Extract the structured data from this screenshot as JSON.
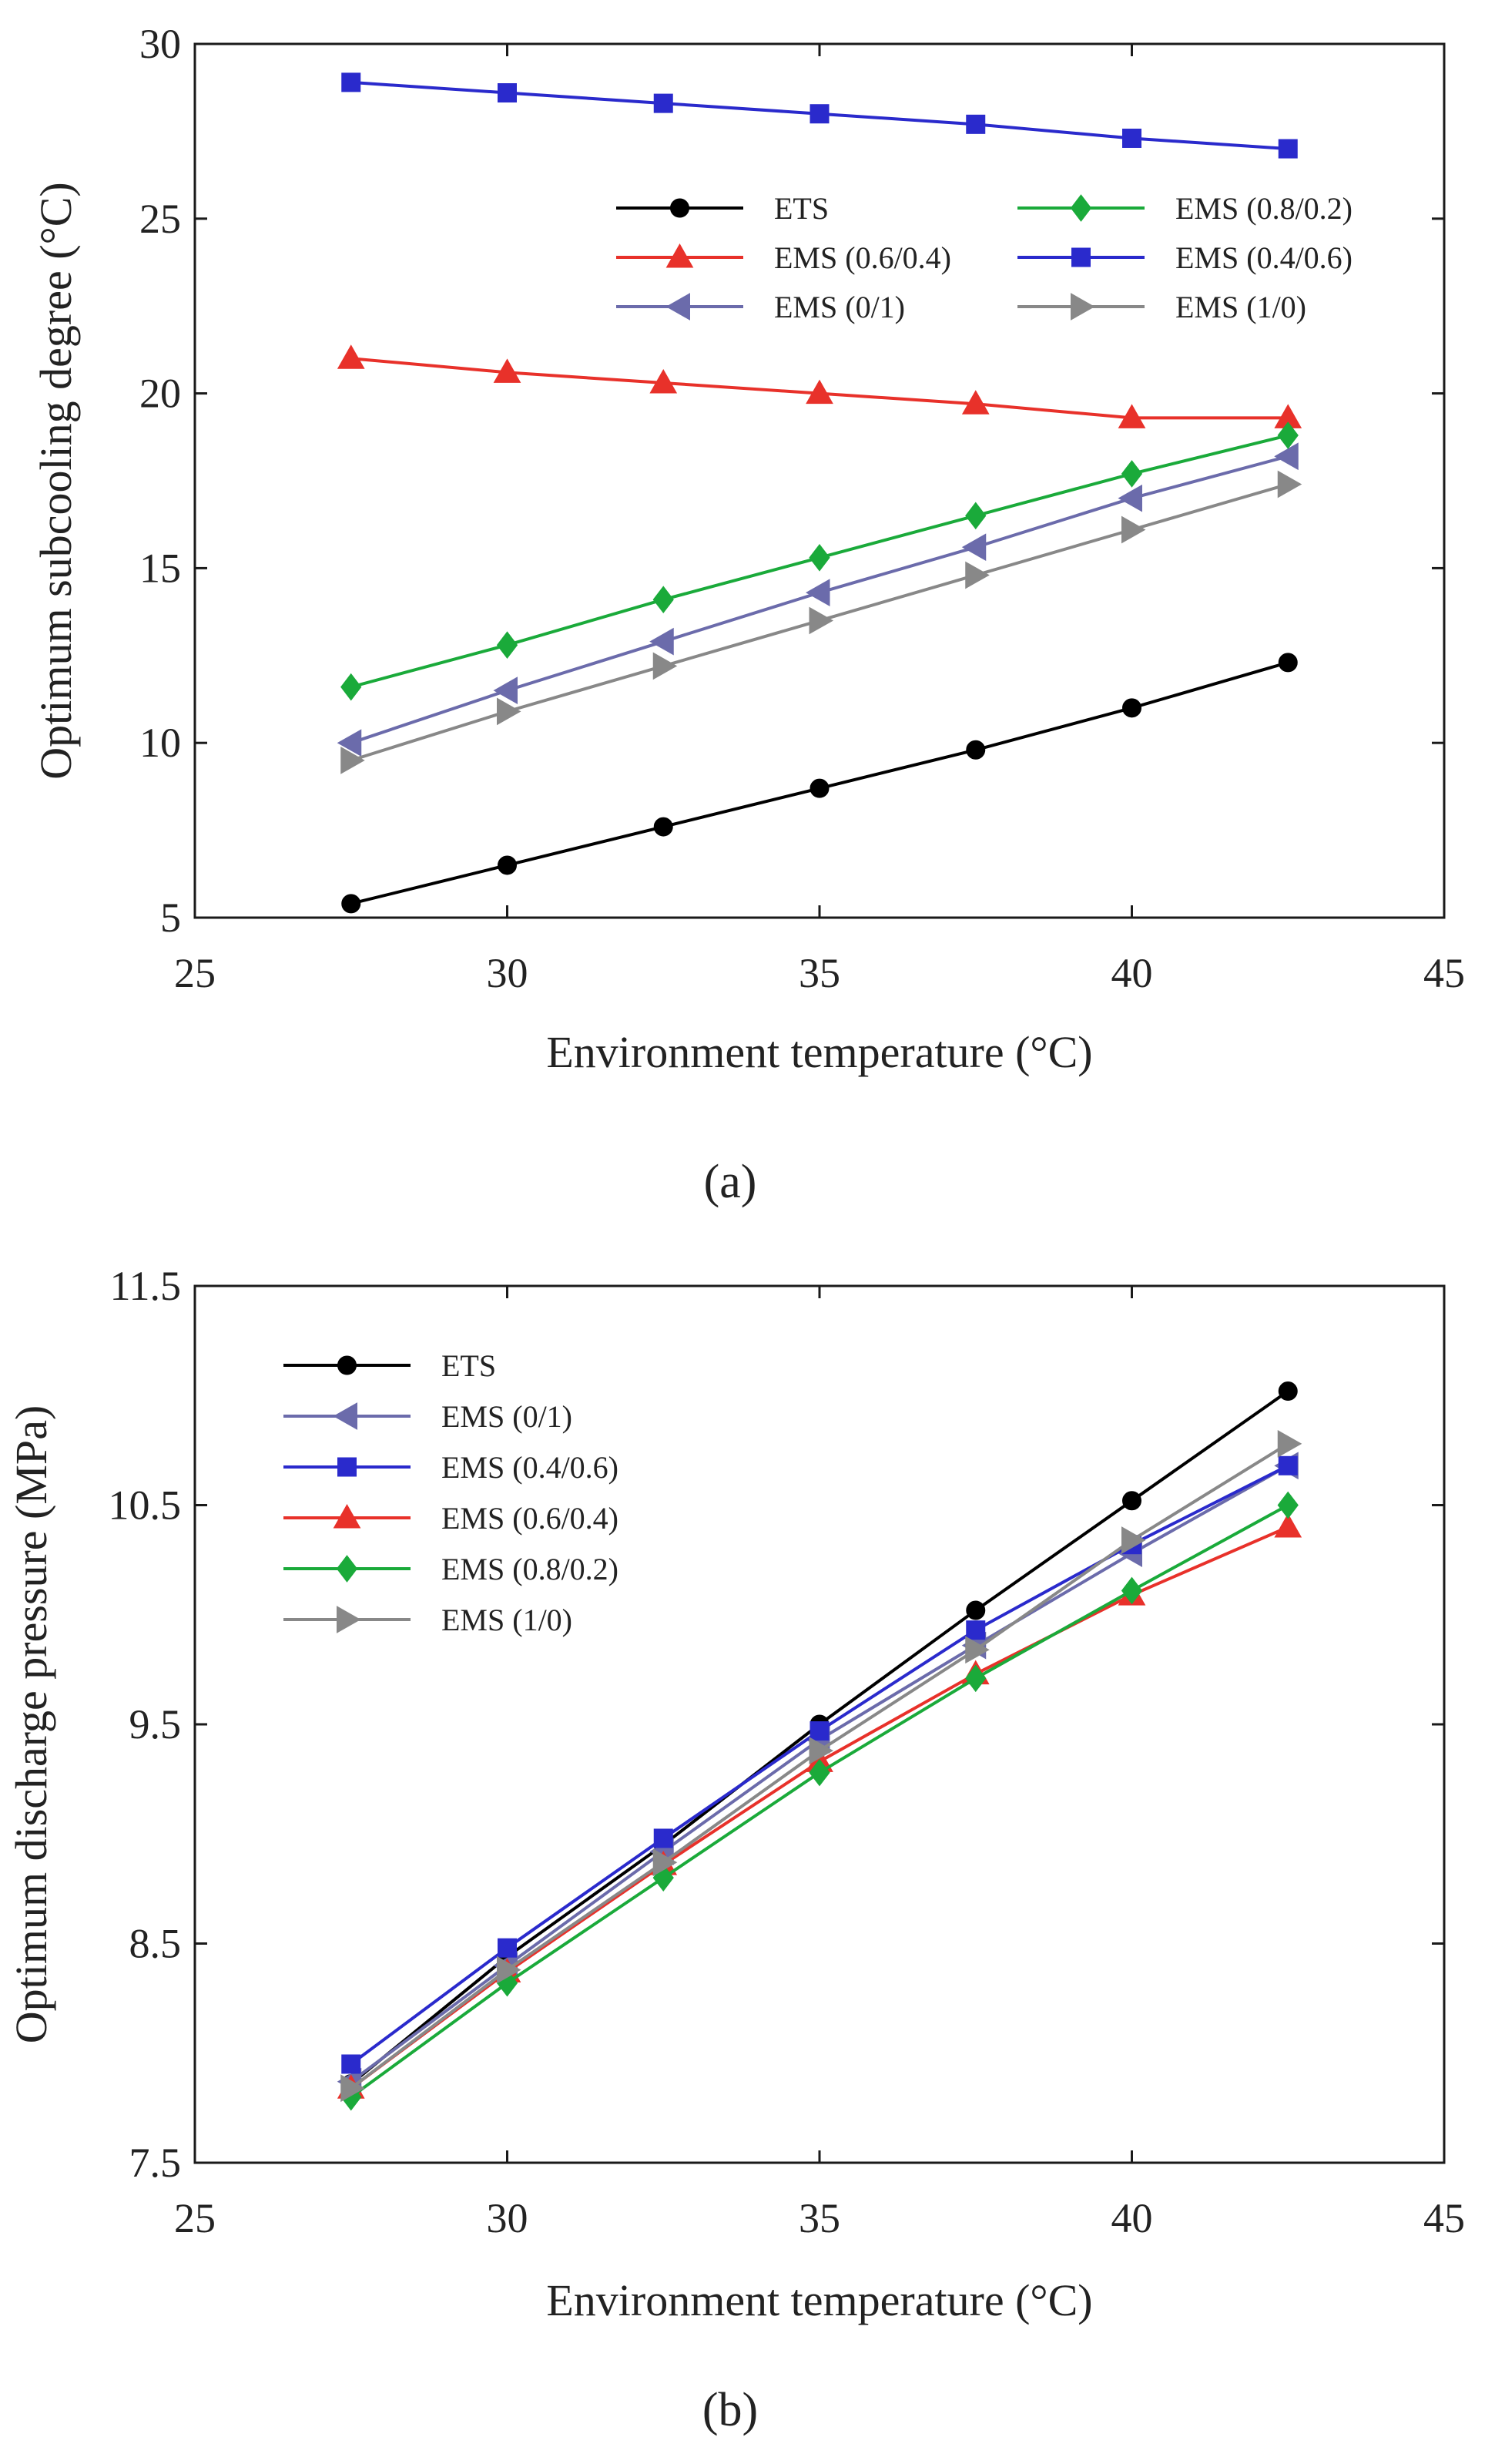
{
  "chart_data": [
    {
      "type": "line",
      "panel_label": "(a)",
      "xlabel": "Environment temperature (°C)",
      "ylabel": "Optimum subcooling degree (°C)",
      "xlim": [
        25,
        45
      ],
      "ylim": [
        5,
        30
      ],
      "xticks": [
        25,
        30,
        35,
        40,
        45
      ],
      "yticks": [
        5,
        10,
        15,
        20,
        25,
        30
      ],
      "x": [
        27.5,
        30,
        32.5,
        35,
        37.5,
        40,
        42.5
      ],
      "legend_columns": 2,
      "legend_order": [
        0,
        3,
        1,
        4,
        2,
        5
      ],
      "series": [
        {
          "name": "ETS",
          "color": "#000000",
          "marker": "circle",
          "values": [
            5.4,
            6.5,
            7.6,
            8.7,
            9.8,
            11.0,
            12.3
          ]
        },
        {
          "name": "EMS (0/1)",
          "color": "#6b6bab",
          "marker": "triangle-left",
          "values": [
            10.0,
            11.5,
            12.9,
            14.3,
            15.6,
            17.0,
            18.2
          ]
        },
        {
          "name": "EMS (0.4/0.6)",
          "color": "#2a2acc",
          "marker": "square",
          "values": [
            28.9,
            28.6,
            28.3,
            28.0,
            27.7,
            27.3,
            27.0
          ]
        },
        {
          "name": "EMS (0.6/0.4)",
          "color": "#e8312a",
          "marker": "triangle-up",
          "values": [
            21.0,
            20.6,
            20.3,
            20.0,
            19.7,
            19.3,
            19.3
          ]
        },
        {
          "name": "EMS (0.8/0.2)",
          "color": "#1aaa3a",
          "marker": "diamond",
          "values": [
            11.6,
            12.8,
            14.1,
            15.3,
            16.5,
            17.7,
            18.8
          ]
        },
        {
          "name": "EMS (1/0)",
          "color": "#888888",
          "marker": "triangle-right",
          "values": [
            9.5,
            10.9,
            12.2,
            13.5,
            14.8,
            16.1,
            17.4
          ]
        }
      ]
    },
    {
      "type": "line",
      "panel_label": "(b)",
      "xlabel": "Environment temperature (°C)",
      "ylabel": "Optimum discharge pressure (MPa)",
      "xlim": [
        25,
        45
      ],
      "ylim": [
        7.5,
        11.5
      ],
      "xticks": [
        25,
        30,
        35,
        40,
        45
      ],
      "yticks": [
        7.5,
        8.5,
        9.5,
        10.5,
        11.5
      ],
      "x": [
        27.5,
        30,
        32.5,
        35,
        37.5,
        40,
        42.5
      ],
      "legend_columns": 1,
      "legend_order": [
        0,
        1,
        2,
        3,
        4,
        5
      ],
      "series": [
        {
          "name": "ETS",
          "color": "#000000",
          "marker": "circle",
          "values": [
            7.86,
            8.44,
            8.95,
            9.5,
            10.02,
            10.52,
            11.02
          ]
        },
        {
          "name": "EMS (0/1)",
          "color": "#6b6bab",
          "marker": "triangle-left",
          "values": [
            7.87,
            8.4,
            8.92,
            9.43,
            9.86,
            10.28,
            10.68
          ]
        },
        {
          "name": "EMS (0.4/0.6)",
          "color": "#2a2acc",
          "marker": "square",
          "values": [
            7.95,
            8.48,
            8.98,
            9.47,
            9.93,
            10.32,
            10.68
          ]
        },
        {
          "name": "EMS (0.6/0.4)",
          "color": "#e8312a",
          "marker": "triangle-up",
          "values": [
            7.84,
            8.37,
            8.86,
            9.33,
            9.73,
            10.09,
            10.4
          ]
        },
        {
          "name": "EMS (0.8/0.2)",
          "color": "#1aaa3a",
          "marker": "diamond",
          "values": [
            7.8,
            8.32,
            8.8,
            9.28,
            9.71,
            10.11,
            10.5
          ]
        },
        {
          "name": "EMS (1/0)",
          "color": "#888888",
          "marker": "triangle-right",
          "values": [
            7.84,
            8.38,
            8.87,
            9.38,
            9.84,
            10.34,
            10.78
          ]
        }
      ]
    }
  ]
}
